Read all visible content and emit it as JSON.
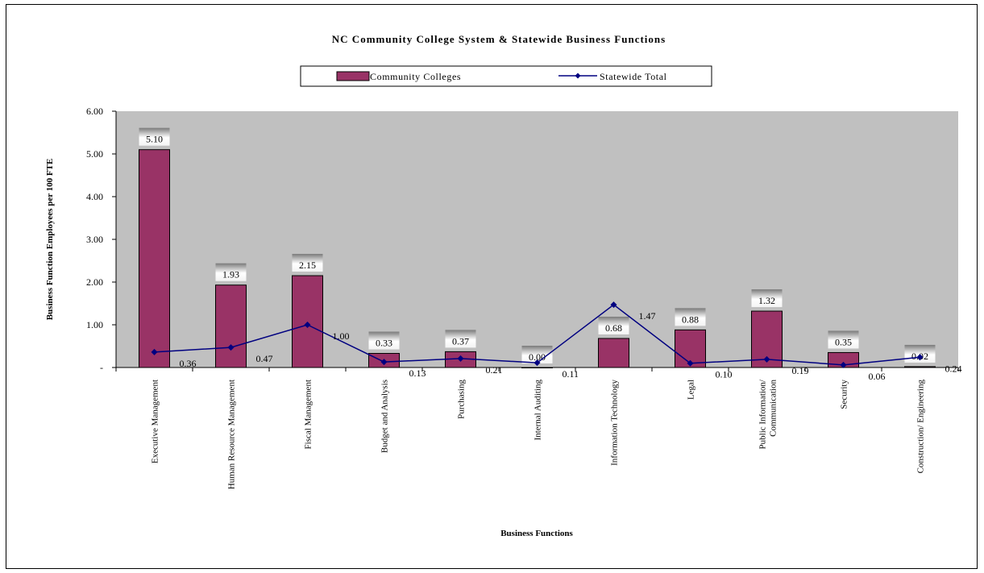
{
  "chart_data": {
    "type": "bar",
    "title": "NC Community College System & Statewide Business Functions",
    "xlabel": "Business Functions",
    "ylabel": "Business Function Employees per 100 FTE",
    "ylim": [
      0,
      6
    ],
    "y_ticks": [
      "-",
      "1.00",
      "2.00",
      "3.00",
      "4.00",
      "5.00",
      "6.00"
    ],
    "legend_position": "top",
    "grid": false,
    "plot_background": "#c0c0c0",
    "categories": [
      [
        "Executive Management"
      ],
      [
        "Human Resource Management"
      ],
      [
        "Fiscal Management"
      ],
      [
        "Budget and Analysis"
      ],
      [
        "Purchasing"
      ],
      [
        "Internal Auditing"
      ],
      [
        "Information Technology"
      ],
      [
        "Legal"
      ],
      [
        "Public Information/",
        "Communication"
      ],
      [
        "Security"
      ],
      [
        "Construction/ Engineering"
      ]
    ],
    "series": [
      {
        "name": "Community Colleges",
        "type": "bar",
        "color": "#993366",
        "values": [
          5.1,
          1.93,
          2.15,
          0.33,
          0.37,
          0.0,
          0.68,
          0.88,
          1.32,
          0.35,
          0.02
        ],
        "labels": [
          "5.10",
          "1.93",
          "2.15",
          "0.33",
          "0.37",
          "0.00",
          "0.68",
          "0.88",
          "1.32",
          "0.35",
          "0.02"
        ]
      },
      {
        "name": "Statewide Total",
        "type": "line",
        "color": "#000080",
        "values": [
          0.36,
          0.47,
          1.0,
          0.13,
          0.21,
          0.11,
          1.47,
          0.1,
          0.19,
          0.06,
          0.24
        ],
        "labels": [
          "0.36",
          "0.47",
          "1.00",
          "0.13",
          "0.21",
          "0.11",
          "1.47",
          "0.10",
          "0.19",
          "0.06",
          "0.24"
        ]
      }
    ]
  }
}
